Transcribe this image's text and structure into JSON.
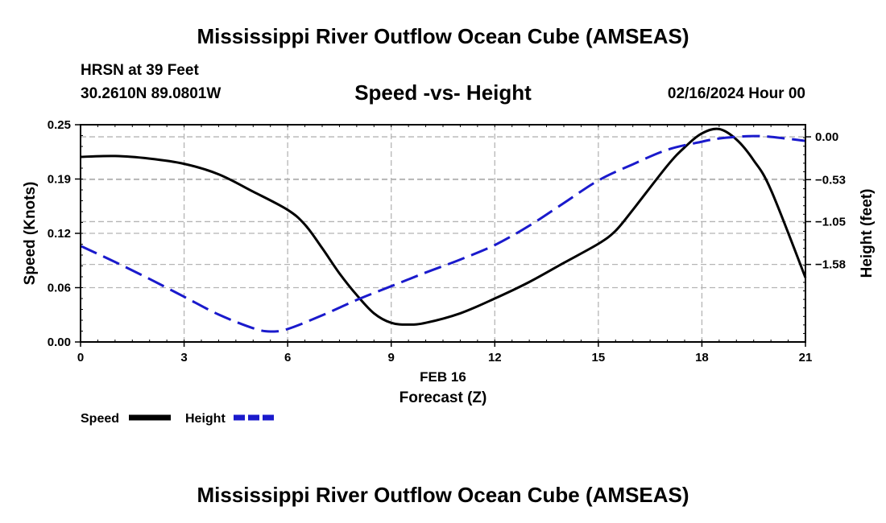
{
  "header": {
    "title": "Mississippi River Outflow Ocean Cube (AMSEAS)",
    "station": "HRSN at 39 Feet",
    "coordinates": "30.2610N  89.0801W",
    "subtitle": "Speed -vs- Height",
    "datetime": "02/16/2024 Hour 00"
  },
  "footer": {
    "title": "Mississippi River Outflow Ocean Cube (AMSEAS)"
  },
  "chart_data": {
    "type": "line",
    "xlabel": "Forecast (Z)",
    "date_label": "FEB 16",
    "ylabel_left": "Speed (Knots)",
    "ylabel_right": "Height (feet)",
    "xlim": [
      0,
      21
    ],
    "ylim_left": [
      0,
      0.25
    ],
    "ylim_right": [
      -2.54,
      0.15
    ],
    "x_ticks": [
      0,
      3,
      6,
      9,
      12,
      15,
      18,
      21
    ],
    "y_left_ticks": [
      0,
      0.0625,
      0.125,
      0.1875,
      0.25
    ],
    "y_left_tick_labels": [
      "0.00",
      "0.06",
      "0.12",
      "0.19",
      "0.25"
    ],
    "y_right_ticks": [
      0,
      -0.53,
      -1.05,
      -1.58
    ],
    "y_right_tick_labels": [
      "0.00",
      "−0.53",
      "−1.05",
      "−1.58"
    ],
    "grid": true,
    "legend_position": "bottom-left",
    "series": [
      {
        "name": "Speed",
        "axis": "left",
        "color": "#000000",
        "style": "solid",
        "x": [
          0,
          1,
          2,
          3,
          4,
          5,
          6,
          6.5,
          7,
          7.5,
          8,
          8.5,
          9,
          9.5,
          10,
          11,
          12,
          13,
          14,
          15,
          15.5,
          16,
          17,
          17.5,
          18,
          18.5,
          19,
          19.5,
          20,
          21
        ],
        "values": [
          0.213,
          0.214,
          0.211,
          0.205,
          0.193,
          0.173,
          0.152,
          0.135,
          0.108,
          0.079,
          0.054,
          0.033,
          0.022,
          0.02,
          0.022,
          0.033,
          0.05,
          0.069,
          0.091,
          0.113,
          0.128,
          0.152,
          0.203,
          0.224,
          0.24,
          0.245,
          0.233,
          0.209,
          0.175,
          0.074
        ]
      },
      {
        "name": "Height",
        "axis": "right",
        "color": "#1a1acc",
        "style": "dashed",
        "x": [
          0,
          1,
          2,
          3,
          4,
          5,
          5.5,
          6,
          7,
          8,
          9,
          10,
          11,
          12,
          13,
          14,
          15,
          16,
          17,
          18,
          18.5,
          19,
          19.5,
          20,
          21
        ],
        "values": [
          -1.35,
          -1.55,
          -1.76,
          -1.98,
          -2.2,
          -2.37,
          -2.41,
          -2.38,
          -2.21,
          -2.02,
          -1.85,
          -1.68,
          -1.52,
          -1.34,
          -1.1,
          -0.82,
          -0.54,
          -0.34,
          -0.16,
          -0.06,
          -0.02,
          0.0,
          0.01,
          0.0,
          -0.05
        ]
      }
    ]
  }
}
